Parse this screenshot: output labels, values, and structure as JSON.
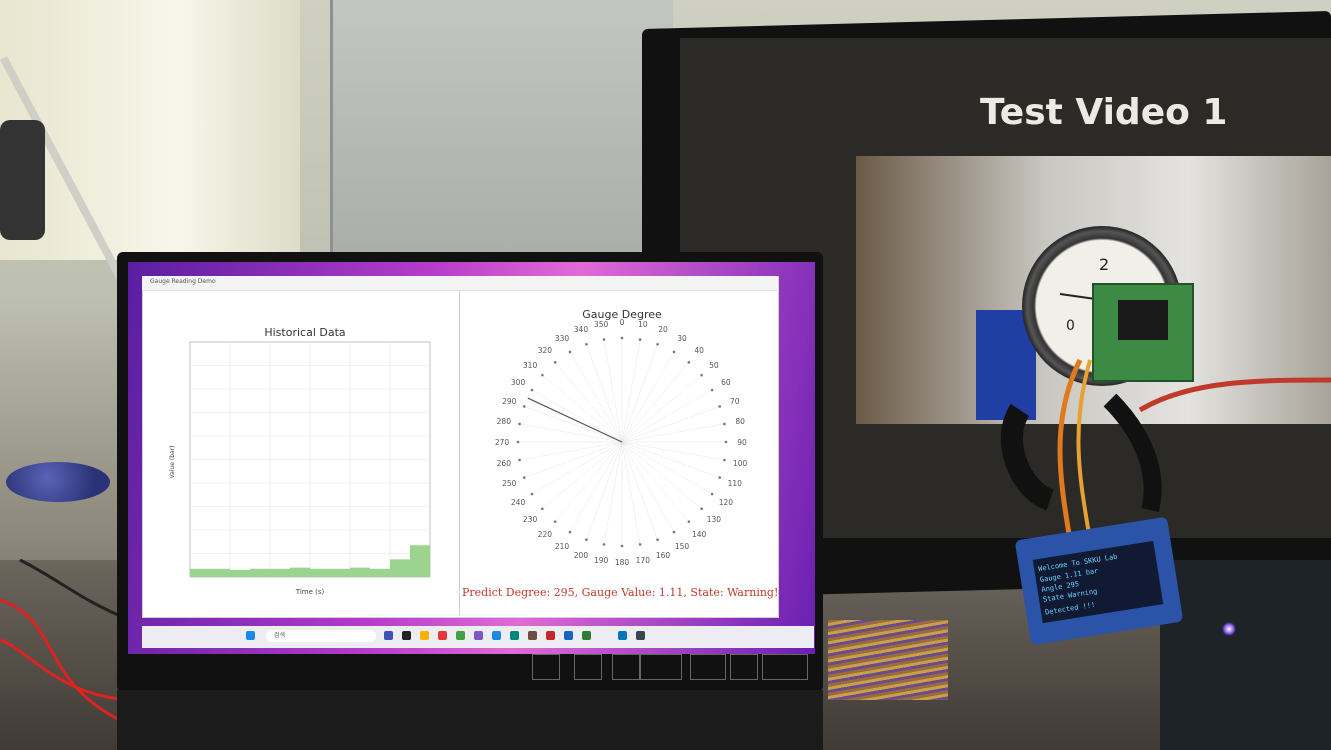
{
  "monitor": {
    "video_title": "Test Video 1",
    "gauge_numbers": {
      "two": "2",
      "zero": "0"
    }
  },
  "laptop": {
    "window_title": "Gauge Reading Demo",
    "left_chart": {
      "title": "Historical Data",
      "xlabel": "Time (s)",
      "ylabel": "Value (bar)"
    },
    "right_chart": {
      "title": "Gauge Degree",
      "status_line": "Predict Degree: 295, Gauge Value: 1.11, State: Warning!",
      "status_color": "#c0392b"
    },
    "taskbar_search": "검색"
  },
  "oled": {
    "lines": [
      "Welcome To SKKU Lab",
      "Gauge 1.11 bar",
      "Angle 295",
      "State Warning",
      "Detected !!!"
    ],
    "text_color": "#6bd1ff"
  },
  "chart_data": [
    {
      "type": "bar",
      "title": "Historical Data",
      "xlabel": "Time (s)",
      "ylabel": "Value (bar)",
      "x": [
        -50,
        -45,
        -40,
        -35,
        -30,
        -25,
        -20,
        -15,
        -10,
        -5,
        0,
        5
      ],
      "values": [
        0.35,
        0.35,
        0.3,
        0.35,
        0.35,
        0.4,
        0.35,
        0.35,
        0.4,
        0.35,
        0.75,
        1.35
      ],
      "xlim": [
        -50,
        10
      ],
      "ylim": [
        0,
        10
      ],
      "grid": true,
      "color": "#9bd48e"
    },
    {
      "type": "polar",
      "title": "Gauge Degree",
      "angle_ticks": [
        "0",
        "10",
        "20",
        "30",
        "40",
        "50",
        "60",
        "70",
        "80",
        "90",
        "100",
        "110",
        "120",
        "130",
        "140",
        "150",
        "160",
        "170",
        "180",
        "190",
        "200",
        "210",
        "220",
        "230",
        "240",
        "250",
        "260",
        "270",
        "280",
        "290",
        "300",
        "310",
        "320",
        "330",
        "340",
        "350"
      ],
      "needle_degree": 295,
      "gauge_value": 1.11,
      "state": "Warning!"
    }
  ]
}
